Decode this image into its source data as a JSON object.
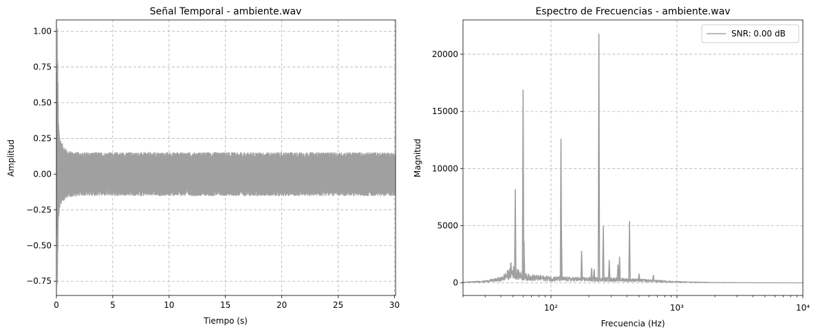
{
  "chart_data": [
    {
      "type": "line",
      "title": "Señal Temporal - ambiente.wav",
      "xlabel": "Tiempo (s)",
      "ylabel": "Amplitud",
      "xlim": [
        0,
        30.1
      ],
      "ylim": [
        -0.85,
        1.08
      ],
      "xscale": "linear",
      "xticks": [
        0,
        5,
        10,
        15,
        20,
        25,
        30
      ],
      "xtick_labels": [
        "0",
        "5",
        "10",
        "15",
        "20",
        "25",
        "30"
      ],
      "yticks": [
        -0.75,
        -0.5,
        -0.25,
        0.0,
        0.25,
        0.5,
        0.75,
        1.0
      ],
      "ytick_labels": [
        "−0.75",
        "−0.50",
        "−0.25",
        "0.00",
        "0.25",
        "0.50",
        "0.75",
        "1.00"
      ],
      "grid": true,
      "line_color": "#a0a0a0",
      "series": [
        {
          "x": [
            0,
            0.1,
            0.15,
            0.2,
            0.3,
            0.5,
            1,
            2,
            5,
            10,
            15,
            20,
            25,
            30
          ],
          "upper": [
            0.0,
            1.0,
            0.6,
            0.33,
            0.25,
            0.2,
            0.15,
            0.14,
            0.14,
            0.14,
            0.14,
            0.14,
            0.14,
            0.14
          ],
          "lower": [
            0.0,
            -0.76,
            -0.5,
            -0.3,
            -0.22,
            -0.18,
            -0.15,
            -0.14,
            -0.14,
            -0.14,
            -0.14,
            -0.14,
            -0.14,
            -0.14
          ]
        }
      ]
    },
    {
      "type": "line",
      "title": "Espectro de Frecuencias - ambiente.wav",
      "xlabel": "Frecuencia (Hz)",
      "ylabel": "Magnitud",
      "xlim": [
        20,
        10000
      ],
      "ylim": [
        -1100,
        23000
      ],
      "xscale": "log",
      "xticks": [
        100,
        1000,
        10000
      ],
      "xtick_labels": [
        "10²",
        "10³",
        "10⁴"
      ],
      "yticks": [
        0,
        5000,
        10000,
        15000,
        20000
      ],
      "ytick_labels": [
        "0",
        "5000",
        "10000",
        "15000",
        "20000"
      ],
      "grid": true,
      "line_color": "#a0a0a0",
      "legend": {
        "location": "top-right",
        "label": "SNR: 0.00 dB"
      },
      "series": [
        {
          "name": "SNR: 0.00 dB",
          "baseline": [
            [
              20,
              50
            ],
            [
              30,
              120
            ],
            [
              40,
              300
            ],
            [
              46,
              700
            ],
            [
              50,
              900
            ],
            [
              60,
              500
            ],
            [
              80,
              400
            ],
            [
              100,
              350
            ],
            [
              150,
              300
            ],
            [
              250,
              300
            ],
            [
              400,
              250
            ],
            [
              600,
              180
            ],
            [
              1000,
              80
            ],
            [
              2000,
              30
            ],
            [
              5000,
              10
            ],
            [
              10000,
              5
            ]
          ],
          "peaks": [
            [
              48,
              1800
            ],
            [
              52,
              8200
            ],
            [
              60,
              16900
            ],
            [
              61,
              3600
            ],
            [
              120,
              12600
            ],
            [
              121,
              4500
            ],
            [
              175,
              2800
            ],
            [
              210,
              1300
            ],
            [
              220,
              1200
            ],
            [
              240,
              21800
            ],
            [
              260,
              5000
            ],
            [
              290,
              2000
            ],
            [
              340,
              1600
            ],
            [
              350,
              2300
            ],
            [
              420,
              5400
            ],
            [
              500,
              800
            ],
            [
              650,
              700
            ]
          ]
        }
      ]
    }
  ]
}
